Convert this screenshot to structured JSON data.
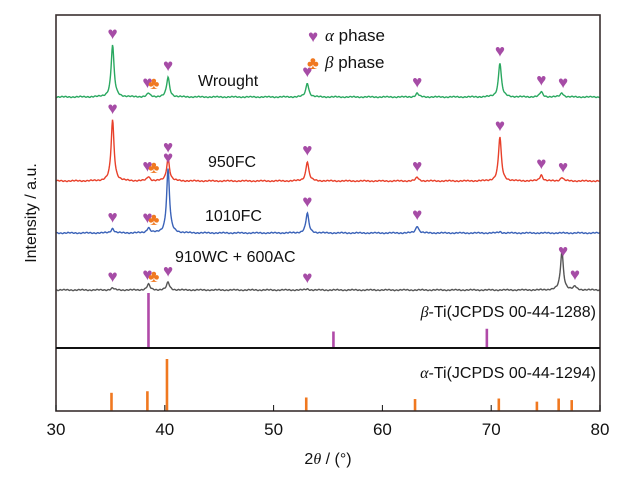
{
  "chart_data": {
    "type": "line",
    "title": "",
    "xlabel_prefix": "2",
    "xlabel_symbol": "θ",
    "xlabel_suffix": " / (°)",
    "ylabel": "Intensity / a.u.",
    "xlim": [
      30,
      80
    ],
    "xticks": [
      30,
      40,
      50,
      60,
      70,
      80
    ],
    "xtick_labels": [
      "30",
      "40",
      "50",
      "60",
      "70",
      "80"
    ],
    "grid": false,
    "legend": {
      "placement": "top-center",
      "entries": [
        {
          "symbol": "♥",
          "greek": "α",
          "text": " phase",
          "color": "#a64ca6"
        },
        {
          "symbol": "♣",
          "greek": "β",
          "text": " phase",
          "color": "#f07820"
        }
      ]
    },
    "series": [
      {
        "name": "Wrought",
        "color": "#2aa860",
        "peaks": [
          {
            "x": 35.2,
            "h": 1.0
          },
          {
            "x": 38.5,
            "h": 0.07
          },
          {
            "x": 40.3,
            "h": 0.38
          },
          {
            "x": 53.1,
            "h": 0.27
          },
          {
            "x": 63.2,
            "h": 0.07
          },
          {
            "x": 70.8,
            "h": 0.66
          },
          {
            "x": 74.6,
            "h": 0.1
          },
          {
            "x": 76.5,
            "h": 0.08
          }
        ],
        "alpha_markers": [
          35.2,
          38.4,
          40.3,
          53.1,
          63.2,
          70.8,
          74.6,
          76.6
        ],
        "beta_markers": [
          38.9
        ]
      },
      {
        "name": "950FC",
        "color": "#e8402a",
        "peaks": [
          {
            "x": 35.2,
            "h": 1.0
          },
          {
            "x": 38.5,
            "h": 0.07
          },
          {
            "x": 40.3,
            "h": 0.37
          },
          {
            "x": 53.1,
            "h": 0.32
          },
          {
            "x": 63.2,
            "h": 0.06
          },
          {
            "x": 70.8,
            "h": 0.72
          },
          {
            "x": 74.6,
            "h": 0.1
          },
          {
            "x": 76.5,
            "h": 0.06
          }
        ],
        "alpha_markers": [
          35.2,
          38.4,
          40.3,
          53.1,
          63.2,
          70.8,
          74.6,
          76.6
        ],
        "beta_markers": [
          38.9
        ]
      },
      {
        "name": "1010FC",
        "color": "#3a62b8",
        "peaks": [
          {
            "x": 35.2,
            "h": 0.07
          },
          {
            "x": 38.5,
            "h": 0.08
          },
          {
            "x": 40.3,
            "h": 1.0
          },
          {
            "x": 53.1,
            "h": 0.31
          },
          {
            "x": 63.2,
            "h": 0.11
          },
          {
            "x": 70.8,
            "h": 0.02
          }
        ],
        "alpha_markers": [
          35.2,
          38.4,
          40.3,
          53.1,
          63.2
        ],
        "beta_markers": [
          38.9
        ]
      },
      {
        "name": "910WC + 600AC",
        "color": "#555555",
        "peaks": [
          {
            "x": 35.2,
            "h": 0.04
          },
          {
            "x": 38.5,
            "h": 0.12
          },
          {
            "x": 40.3,
            "h": 0.16
          },
          {
            "x": 53.1,
            "h": 0.02
          },
          {
            "x": 76.5,
            "h": 0.8
          },
          {
            "x": 77.7,
            "h": 0.07
          }
        ],
        "alpha_markers": [
          35.2,
          38.4,
          40.3,
          53.1,
          76.6,
          77.7
        ],
        "beta_markers": [
          38.9
        ]
      }
    ],
    "reference_patterns": [
      {
        "name_greek": "β",
        "name_rest": "-Ti(JCPDS 00-44-1288)",
        "color": "#b04aa8",
        "lines": [
          {
            "x": 38.5,
            "h": 1.0
          },
          {
            "x": 55.5,
            "h": 0.3
          },
          {
            "x": 69.6,
            "h": 0.35
          }
        ]
      },
      {
        "name_greek": "α",
        "name_rest": "-Ti(JCPDS 00-44-1294)",
        "color": "#f07820",
        "lines": [
          {
            "x": 35.1,
            "h": 0.35
          },
          {
            "x": 38.4,
            "h": 0.38
          },
          {
            "x": 40.2,
            "h": 1.0
          },
          {
            "x": 53.0,
            "h": 0.26
          },
          {
            "x": 63.0,
            "h": 0.23
          },
          {
            "x": 70.7,
            "h": 0.24
          },
          {
            "x": 74.2,
            "h": 0.18
          },
          {
            "x": 76.2,
            "h": 0.24
          },
          {
            "x": 77.4,
            "h": 0.21
          }
        ]
      }
    ]
  }
}
